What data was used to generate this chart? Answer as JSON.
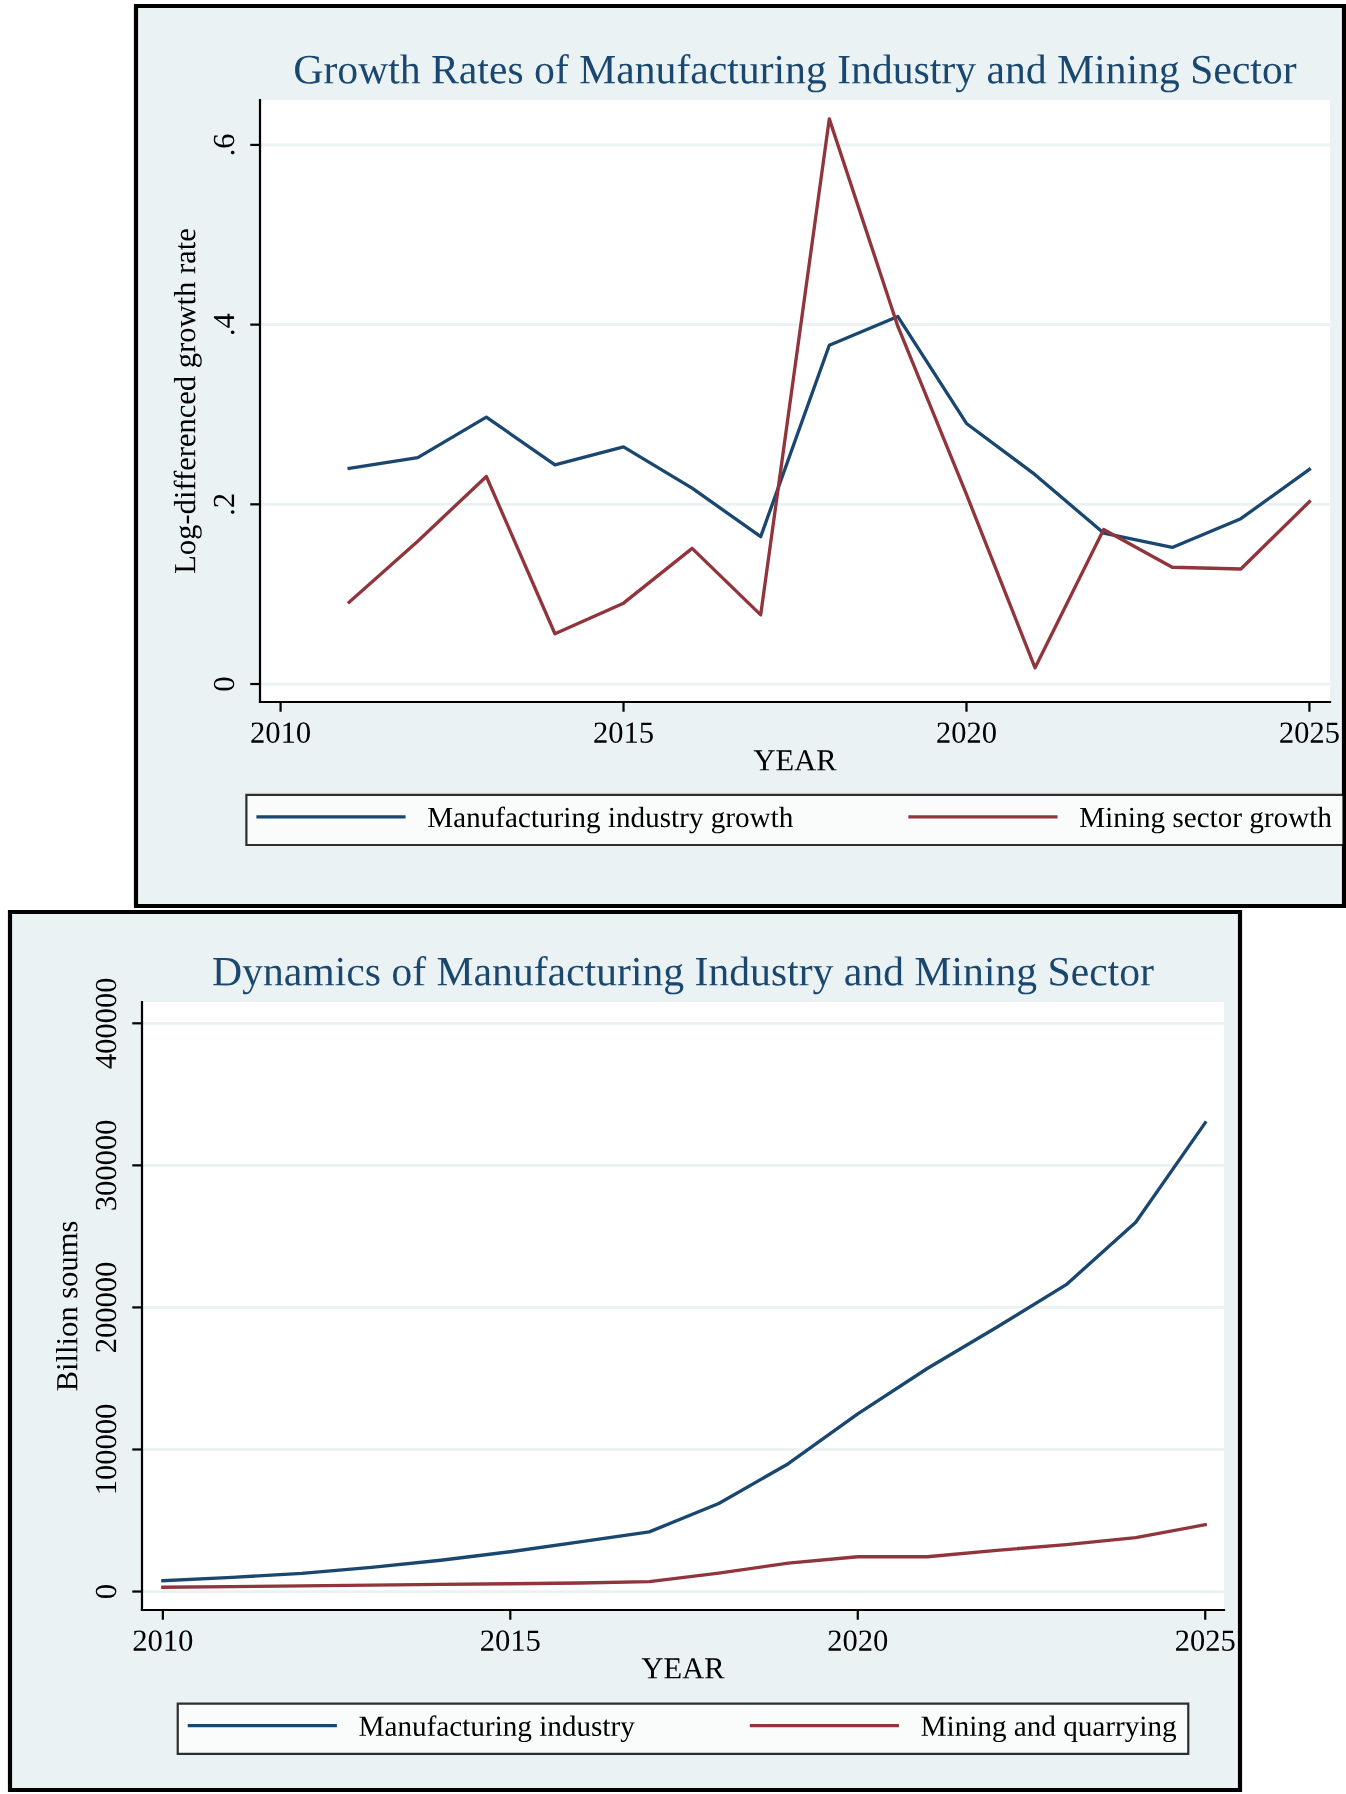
{
  "chart_data": [
    {
      "type": "line",
      "title": "Growth Rates of Manufacturing Industry and Mining Sector",
      "xlabel": "YEAR",
      "ylabel": "Log-differenced growth rate",
      "x": [
        2011,
        2012,
        2013,
        2014,
        2015,
        2016,
        2017,
        2018,
        2019,
        2020,
        2021,
        2022,
        2023,
        2024,
        2025
      ],
      "series": [
        {
          "name": "Manufacturing industry growth",
          "color": "#1a476f",
          "values": [
            0.24,
            0.252,
            0.297,
            0.244,
            0.264,
            0.218,
            0.164,
            0.377,
            0.409,
            0.29,
            0.233,
            0.168,
            0.152,
            0.184,
            0.239
          ]
        },
        {
          "name": "Mining sector growth",
          "color": "#90353b",
          "values": [
            0.091,
            0.159,
            0.231,
            0.056,
            0.09,
            0.151,
            0.077,
            0.629,
            0.398,
            0.211,
            0.018,
            0.172,
            0.13,
            0.128,
            0.203
          ]
        }
      ],
      "xlim": [
        2009.7,
        2025.3
      ],
      "ylim": [
        -0.02,
        0.65
      ],
      "xticks": [
        2010,
        2015,
        2020,
        2025
      ],
      "yticks": [
        {
          "value": 0,
          "label": "0"
        },
        {
          "value": 0.2,
          "label": ".2"
        },
        {
          "value": 0.4,
          "label": ".4"
        },
        {
          "value": 0.6,
          "label": ".6"
        }
      ],
      "grid": "y",
      "legend": "bottom",
      "marker": "none",
      "line_style": "solid"
    },
    {
      "type": "line",
      "title": "Dynamics of Manufacturing Industry and Mining Sector",
      "xlabel": "YEAR",
      "ylabel": "Billion soums",
      "x": [
        2010,
        2011,
        2012,
        2013,
        2014,
        2015,
        2016,
        2017,
        2018,
        2019,
        2020,
        2021,
        2022,
        2023,
        2024,
        2025
      ],
      "series": [
        {
          "name": "Manufacturing industry",
          "color": "#1a476f",
          "values": [
            7600,
            10000,
            12800,
            17000,
            22000,
            28000,
            35000,
            42000,
            62000,
            90000,
            125000,
            157000,
            186000,
            216000,
            260000,
            330000
          ]
        },
        {
          "name": "Mining and quarrying",
          "color": "#90353b",
          "values": [
            3000,
            3500,
            4000,
            4500,
            5000,
            5500,
            6000,
            7000,
            13000,
            20000,
            24500,
            24500,
            29000,
            33000,
            38000,
            47000
          ]
        }
      ],
      "xlim": [
        2009.7,
        2025.27
      ],
      "ylim": [
        -13000,
        415000
      ],
      "xticks": [
        2010,
        2015,
        2020,
        2025
      ],
      "yticks": [
        0,
        100000,
        200000,
        300000,
        400000
      ],
      "grid": "y",
      "legend": "bottom",
      "marker": "none",
      "line_style": "solid"
    }
  ]
}
